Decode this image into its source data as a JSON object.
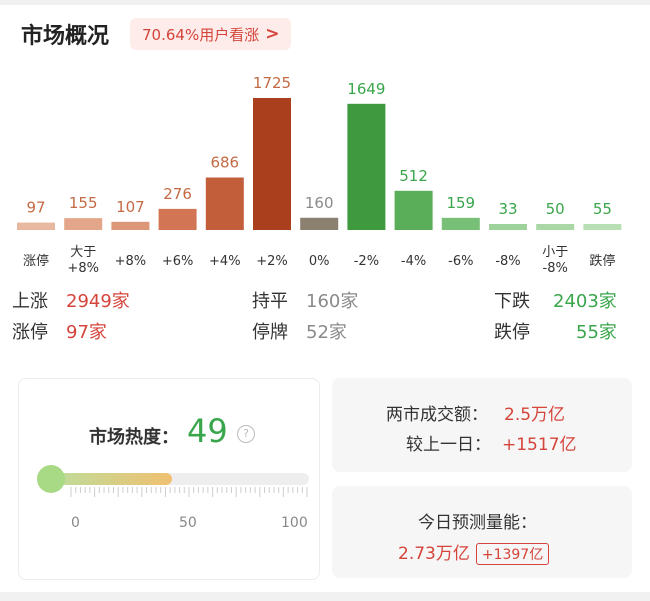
{
  "header": {
    "title": "市场概况",
    "badge": "70.64%用户看涨",
    "badge_arrow": ">"
  },
  "chart_data": {
    "type": "bar",
    "categories": [
      "涨停",
      "大于\n+8%",
      "+8%",
      "+6%",
      "+4%",
      "+2%",
      "0%",
      "-2%",
      "-4%",
      "-6%",
      "-8%",
      "小于\n-8%",
      "跌停"
    ],
    "values": [
      97,
      155,
      107,
      276,
      686,
      1725,
      160,
      1649,
      512,
      159,
      33,
      50,
      55
    ],
    "colors": [
      "#e8b8a0",
      "#e3a68a",
      "#dc9678",
      "#d27554",
      "#c35e3a",
      "#a93f1c",
      "#8c8070",
      "#3f9a3f",
      "#5aae5a",
      "#78bf78",
      "#9dd29a",
      "#a9d8a6",
      "#b9dfb5"
    ],
    "value_colors": [
      "#c46a44",
      "#c46a44",
      "#c46a44",
      "#c46a44",
      "#c46a44",
      "#c46a44",
      "#8a8a8a",
      "#3aa64c",
      "#3aa64c",
      "#3aa64c",
      "#3aa64c",
      "#3aa64c",
      "#3aa64c"
    ]
  },
  "stats": {
    "rise_label": "上涨",
    "rise_value": "2949家",
    "limit_up_label": "涨停",
    "limit_up_value": "97家",
    "flat_label": "持平",
    "flat_value": "160家",
    "suspend_label": "停牌",
    "suspend_value": "52家",
    "fall_label": "下跌",
    "fall_value": "2403家",
    "limit_down_label": "跌停",
    "limit_down_value": "55家"
  },
  "heat": {
    "label": "市场热度：",
    "value": "49",
    "help_icon": "?",
    "level": 0.49,
    "scale_min": "0",
    "scale_mid": "50",
    "scale_max": "100"
  },
  "turnover": {
    "label": "两市成交额：",
    "value": "2.5万亿",
    "compare_label": "较上一日：",
    "compare_value": "+1517亿"
  },
  "forecast": {
    "label": "今日预测量能：",
    "value": "2.73万亿",
    "delta": "+1397亿"
  }
}
